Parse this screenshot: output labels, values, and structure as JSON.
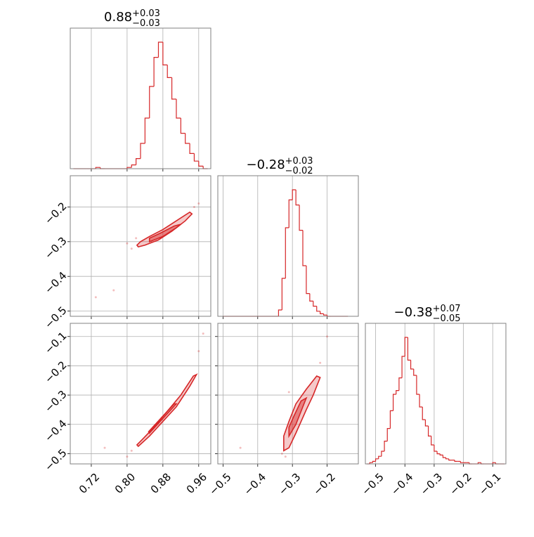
{
  "chart_data": {
    "type": "corner",
    "color": "#d62728",
    "grid": true,
    "params": [
      {
        "title": {
          "median": "0.88",
          "plus": "+0.03",
          "minus": "−0.03"
        },
        "lim": [
          0.673,
          0.987
        ],
        "ticks": [
          0.72,
          {
            "value": 0.8,
            "label": "0.80"
          },
          0.88,
          0.96
        ],
        "bins": [
          0.68,
          0.69,
          0.7,
          0.71,
          0.72,
          0.73,
          0.74,
          0.75,
          0.76,
          0.77,
          0.78,
          0.79,
          0.8,
          0.81,
          0.82,
          0.83,
          0.84,
          0.85,
          0.86,
          0.87,
          0.88,
          0.89,
          0.9,
          0.91,
          0.92,
          0.93,
          0.94,
          0.95,
          0.96,
          0.97,
          0.98
        ],
        "counts": [
          0,
          0,
          0,
          0,
          0,
          1,
          0,
          0,
          0,
          0,
          0,
          0,
          1,
          3,
          8,
          20,
          40,
          65,
          88,
          100,
          82,
          72,
          55,
          40,
          28,
          20,
          12,
          6,
          2,
          0
        ]
      },
      {
        "title": {
          "median": "−0.28",
          "plus": "+0.03",
          "minus": "−0.02"
        },
        "lim": [
          -0.515,
          -0.11
        ],
        "ticks": [
          {
            "value": -0.5,
            "label": "−0.5"
          },
          {
            "value": -0.4,
            "label": "−0.4"
          },
          {
            "value": -0.3,
            "label": "−0.3"
          },
          {
            "value": -0.2,
            "label": "−0.2"
          }
        ],
        "bins": [
          -0.5,
          -0.49,
          -0.48,
          -0.47,
          -0.46,
          -0.45,
          -0.44,
          -0.43,
          -0.42,
          -0.41,
          -0.4,
          -0.39,
          -0.38,
          -0.37,
          -0.36,
          -0.35,
          -0.34,
          -0.33,
          -0.32,
          -0.31,
          -0.3,
          -0.29,
          -0.28,
          -0.27,
          -0.26,
          -0.25,
          -0.24,
          -0.23,
          -0.22,
          -0.21,
          -0.2,
          -0.19,
          -0.18,
          -0.17,
          -0.16,
          -0.15,
          -0.14
        ],
        "counts": [
          0,
          0,
          0,
          0,
          0,
          0,
          0,
          0,
          0,
          0,
          0,
          0,
          0,
          0,
          0,
          0,
          5,
          30,
          70,
          92,
          100,
          88,
          68,
          40,
          18,
          12,
          8,
          4,
          2,
          1,
          0,
          0,
          0,
          0,
          0,
          0
        ]
      },
      {
        "title": {
          "median": "−0.38",
          "plus": "+0.07",
          "minus": "−0.05"
        },
        "lim": [
          -0.535,
          -0.055
        ],
        "ticks": [
          {
            "value": -0.5,
            "label": "−0.5"
          },
          {
            "value": -0.4,
            "label": "−0.4"
          },
          {
            "value": -0.3,
            "label": "−0.3"
          },
          {
            "value": -0.2,
            "label": "−0.2"
          },
          {
            "value": -0.1,
            "label": "−0.1"
          }
        ],
        "bins": [
          -0.53,
          -0.52,
          -0.51,
          -0.5,
          -0.49,
          -0.48,
          -0.47,
          -0.46,
          -0.45,
          -0.44,
          -0.43,
          -0.42,
          -0.41,
          -0.4,
          -0.39,
          -0.38,
          -0.37,
          -0.36,
          -0.35,
          -0.34,
          -0.33,
          -0.32,
          -0.31,
          -0.3,
          -0.29,
          -0.28,
          -0.27,
          -0.26,
          -0.25,
          -0.24,
          -0.23,
          -0.22,
          -0.21,
          -0.2,
          -0.19,
          -0.18,
          -0.17,
          -0.16,
          -0.15,
          -0.14,
          -0.13,
          -0.12,
          -0.11,
          -0.1,
          -0.09,
          -0.08,
          -0.07,
          -0.06
        ],
        "counts": [
          0,
          1,
          2,
          4,
          6,
          10,
          18,
          28,
          42,
          55,
          58,
          68,
          85,
          100,
          82,
          75,
          70,
          55,
          45,
          35,
          30,
          22,
          15,
          10,
          8,
          7,
          5,
          4,
          3,
          3,
          2,
          2,
          1,
          1,
          1,
          0,
          0,
          0,
          1,
          0,
          0,
          0,
          0,
          1,
          0,
          0,
          0
        ]
      }
    ],
    "panels": [
      {
        "x": 0,
        "y": 1,
        "points": {
          "x": [
            0.8,
            0.81,
            0.82,
            0.96,
            0.73,
            0.77,
            0.95
          ],
          "y": [
            -0.305,
            -0.32,
            -0.29,
            -0.19,
            -0.46,
            -0.44,
            -0.2
          ]
        },
        "contours": [
          {
            "x": [
              0.825,
              0.84,
              0.87,
              0.9,
              0.93,
              0.945,
              0.94,
              0.91,
              0.88,
              0.85,
              0.83,
              0.822
            ],
            "y": [
              -0.315,
              -0.31,
              -0.295,
              -0.27,
              -0.24,
              -0.22,
              -0.215,
              -0.24,
              -0.265,
              -0.285,
              -0.3,
              -0.31
            ]
          },
          {
            "x": [
              0.85,
              0.88,
              0.91,
              0.92,
              0.905,
              0.875,
              0.85
            ],
            "y": [
              -0.3,
              -0.285,
              -0.26,
              -0.25,
              -0.255,
              -0.275,
              -0.29
            ]
          }
        ]
      },
      {
        "x": 0,
        "y": 2,
        "points": {
          "x": [
            0.8,
            0.81,
            0.97,
            0.96,
            0.75
          ],
          "y": [
            -0.51,
            -0.49,
            -0.09,
            -0.15,
            -0.48
          ]
        },
        "contours": [
          {
            "x": [
              0.825,
              0.85,
              0.88,
              0.91,
              0.94,
              0.955,
              0.948,
              0.92,
              0.89,
              0.86,
              0.835,
              0.822
            ],
            "y": [
              -0.475,
              -0.44,
              -0.39,
              -0.34,
              -0.27,
              -0.23,
              -0.235,
              -0.3,
              -0.355,
              -0.41,
              -0.45,
              -0.47
            ]
          },
          {
            "x": [
              0.85,
              0.88,
              0.91,
              0.905,
              0.875,
              0.848
            ],
            "y": [
              -0.43,
              -0.38,
              -0.33,
              -0.33,
              -0.38,
              -0.425
            ]
          }
        ]
      },
      {
        "x": 1,
        "y": 2,
        "points": {
          "x": [
            -0.32,
            -0.33,
            -0.2,
            -0.22,
            -0.45,
            -0.31
          ],
          "y": [
            -0.51,
            -0.5,
            -0.1,
            -0.19,
            -0.48,
            -0.29
          ]
        },
        "contours": [
          {
            "x": [
              -0.325,
              -0.31,
              -0.29,
              -0.26,
              -0.24,
              -0.22,
              -0.23,
              -0.26,
              -0.29,
              -0.31,
              -0.325
            ],
            "y": [
              -0.49,
              -0.48,
              -0.43,
              -0.35,
              -0.3,
              -0.24,
              -0.235,
              -0.28,
              -0.33,
              -0.39,
              -0.44
            ]
          },
          {
            "x": [
              -0.31,
              -0.29,
              -0.27,
              -0.26,
              -0.275,
              -0.295,
              -0.31
            ],
            "y": [
              -0.44,
              -0.4,
              -0.34,
              -0.31,
              -0.32,
              -0.37,
              -0.41
            ]
          }
        ]
      }
    ]
  }
}
